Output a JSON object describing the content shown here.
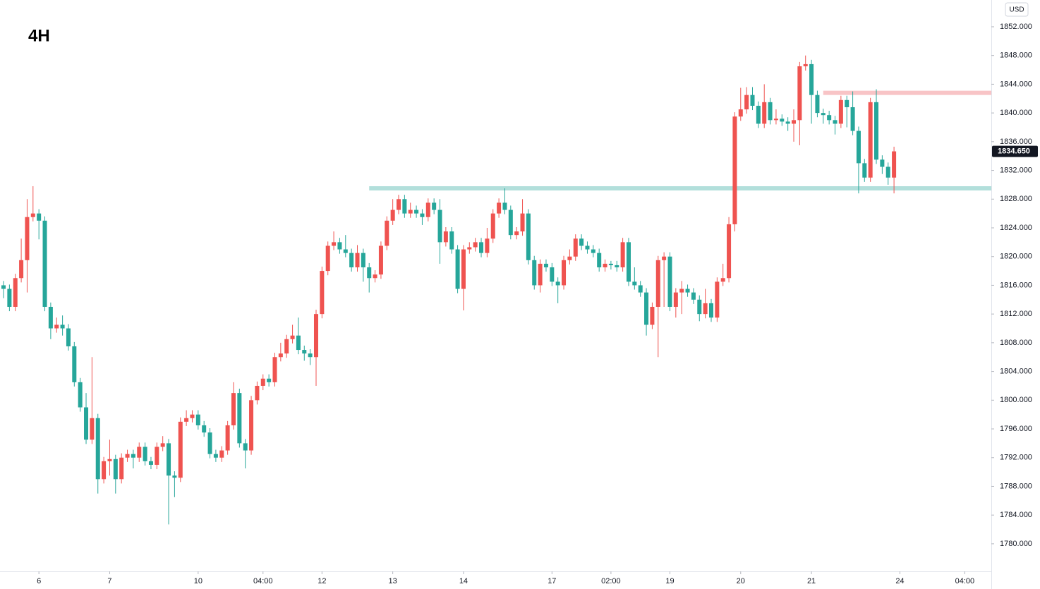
{
  "chart_data": {
    "type": "candlestick",
    "title": "4H",
    "currency": "USD",
    "up_color": "#ef5350",
    "down_color": "#26a69a",
    "open": [
      1816,
      1815.5,
      1813,
      1817,
      1819.5,
      1825.5,
      1826,
      1825,
      1813,
      1810,
      1810.5,
      1810,
      1807.5,
      1802.5,
      1799,
      1794.5,
      1797.5,
      1789,
      1791.5,
      1791.8,
      1789,
      1792,
      1792.5,
      1792,
      1793.5,
      1791.5,
      1791,
      1793.5,
      1794,
      1789.5,
      1789.2,
      1797,
      1797.5,
      1798,
      1796.5,
      1795.5,
      1792.5,
      1792,
      1793,
      1796.5,
      1801,
      1794,
      1793,
      1800,
      1802,
      1803,
      1802.5,
      1806,
      1806.5,
      1808.5,
      1809,
      1807,
      1806.5,
      1806,
      1812,
      1818,
      1821.5,
      1822,
      1821,
      1820.5,
      1818.5,
      1820.5,
      1818.5,
      1817,
      1817.5,
      1821.5,
      1825,
      1826.5,
      1828,
      1826,
      1826.5,
      1826,
      1825.5,
      1827.5,
      1826.5,
      1822,
      1823.5,
      1821,
      1815.5,
      1821,
      1821.3,
      1822,
      1820.5,
      1822.5,
      1826,
      1827.5,
      1826.5,
      1823,
      1823.5,
      1826,
      1819.5,
      1816,
      1819,
      1818.5,
      1816.5,
      1816,
      1819.5,
      1820,
      1822.5,
      1821.5,
      1821,
      1820.5,
      1818.5,
      1819,
      1818.8,
      1818.5,
      1822,
      1816.5,
      1816,
      1815,
      1810.5,
      1813,
      1819.5,
      1820,
      1813,
      1815,
      1815.5,
      1815,
      1814,
      1812,
      1813.5,
      1811.5,
      1816.5,
      1817,
      1824.5,
      1839.5,
      1840.5,
      1842.5,
      1841,
      1838.5,
      1841.5,
      1839,
      1839.2,
      1838.8,
      1838.5,
      1839,
      1846.5,
      1846.8,
      1842.5,
      1840,
      1839.7,
      1839,
      1838.5,
      1841.8,
      1840.8,
      1837.5,
      1833,
      1831,
      1841.5,
      1833.5,
      1832.5,
      1831
    ],
    "high": [
      1816.6,
      1816.1,
      1817.6,
      1822.5,
      1828,
      1829.8,
      1826.6,
      1825.6,
      1813.6,
      1811.5,
      1811.8,
      1810.6,
      1808.1,
      1803.1,
      1801,
      1806,
      1798.1,
      1792.1,
      1794.5,
      1792.4,
      1792.6,
      1793.1,
      1793.1,
      1794.1,
      1794.1,
      1792.1,
      1794.1,
      1795,
      1794.6,
      1790.1,
      1797.6,
      1798.6,
      1798.6,
      1798.6,
      1797.1,
      1796.1,
      1793.1,
      1793.6,
      1797.1,
      1802.5,
      1801.6,
      1794.6,
      1800.6,
      1802.6,
      1803.6,
      1803.6,
      1806.6,
      1808,
      1809.1,
      1810.5,
      1811.5,
      1807.6,
      1807.1,
      1812.6,
      1818.6,
      1822.1,
      1823.5,
      1822.6,
      1823,
      1821.1,
      1821.6,
      1821.1,
      1819.1,
      1818.1,
      1822.1,
      1825.6,
      1828,
      1828.6,
      1828.6,
      1827.5,
      1827.1,
      1826.6,
      1828.1,
      1828.1,
      1828,
      1824.1,
      1824.1,
      1821.6,
      1821.6,
      1822,
      1822.6,
      1822.6,
      1824,
      1826.6,
      1828.1,
      1829.5,
      1827.1,
      1824.1,
      1828,
      1826.6,
      1820.1,
      1819.6,
      1819.6,
      1819.1,
      1817.1,
      1820.1,
      1821,
      1823.1,
      1823.1,
      1822.1,
      1821.6,
      1821.1,
      1819.6,
      1819.4,
      1819.4,
      1822.6,
      1822.6,
      1818.5,
      1816.6,
      1815.6,
      1813.6,
      1820.1,
      1820.6,
      1820.6,
      1815.6,
      1816.6,
      1816.1,
      1815.6,
      1814.6,
      1815.5,
      1814.1,
      1817.1,
      1819,
      1825.5,
      1840.1,
      1843.5,
      1843.6,
      1843.6,
      1841.6,
      1844,
      1842.1,
      1840.5,
      1839.8,
      1839.4,
      1840.5,
      1847.1,
      1848,
      1847.4,
      1843.1,
      1840.6,
      1840.3,
      1839.6,
      1842.4,
      1842.4,
      1843,
      1838.1,
      1833.6,
      1842.1,
      1843.3,
      1834.1,
      1833.1,
      1835.3
    ],
    "low": [
      1814.2,
      1812.4,
      1812.4,
      1816.4,
      1815,
      1824.9,
      1822.4,
      1812.4,
      1808.5,
      1809.4,
      1809,
      1806.9,
      1801.9,
      1798.4,
      1793.9,
      1793.9,
      1787,
      1788.4,
      1789.5,
      1787,
      1788.4,
      1791.4,
      1790.5,
      1791.4,
      1790.9,
      1790.4,
      1790.4,
      1792.9,
      1782.7,
      1786.5,
      1788.6,
      1796.4,
      1796.9,
      1795.9,
      1794.9,
      1791.9,
      1791.4,
      1791.4,
      1792.4,
      1795.9,
      1793.4,
      1790.5,
      1792.4,
      1799.4,
      1801.4,
      1801.9,
      1801.9,
      1805.4,
      1805.9,
      1807.9,
      1806.4,
      1805.5,
      1804.9,
      1802,
      1811.4,
      1817.4,
      1820.9,
      1820.4,
      1819.9,
      1817.9,
      1817.9,
      1816.5,
      1815,
      1816.4,
      1816.9,
      1820.9,
      1824.4,
      1825.9,
      1825.4,
      1825.4,
      1825.4,
      1824.4,
      1824.9,
      1825.9,
      1819,
      1821.4,
      1820.4,
      1814.9,
      1812.5,
      1820.4,
      1820.7,
      1819.9,
      1819.9,
      1821.9,
      1825.4,
      1825.9,
      1822.4,
      1822.4,
      1822.9,
      1818.9,
      1815.4,
      1815,
      1817.9,
      1815.9,
      1813.5,
      1815.4,
      1818.9,
      1819.4,
      1820.9,
      1820.4,
      1819.9,
      1817.9,
      1817.9,
      1818.2,
      1817.9,
      1817.9,
      1815.9,
      1815.4,
      1814.4,
      1809,
      1809.9,
      1806,
      1813,
      1812.4,
      1811.5,
      1812,
      1814.4,
      1813.4,
      1811,
      1811.4,
      1810.9,
      1810.9,
      1815.9,
      1816.4,
      1823.5,
      1838.9,
      1839.9,
      1840.4,
      1837.9,
      1837.9,
      1838.4,
      1838.4,
      1838.2,
      1837.5,
      1836,
      1835.5,
      1845.9,
      1838.5,
      1839.4,
      1838.5,
      1838.4,
      1837,
      1837.9,
      1838,
      1836.9,
      1828.8,
      1830.4,
      1830.4,
      1832.9,
      1831.5,
      1830,
      1828.8
    ],
    "close": [
      1815.5,
      1813,
      1817,
      1819.5,
      1825.5,
      1826,
      1825,
      1813,
      1810,
      1810.5,
      1810,
      1807.5,
      1802.5,
      1799,
      1794.5,
      1797.5,
      1789,
      1791.5,
      1791.8,
      1789,
      1792,
      1792.5,
      1792,
      1793.5,
      1791.5,
      1791,
      1793.5,
      1794,
      1789.5,
      1789.2,
      1797,
      1797.5,
      1798,
      1796.5,
      1795.5,
      1792.5,
      1792,
      1793,
      1796.5,
      1801,
      1794,
      1793,
      1800,
      1802,
      1803,
      1802.5,
      1806,
      1806.5,
      1808.5,
      1809,
      1807,
      1806.5,
      1806,
      1812,
      1818,
      1821.5,
      1822,
      1821,
      1820.5,
      1818.5,
      1820.5,
      1818.5,
      1817,
      1817.5,
      1821.5,
      1825,
      1826.5,
      1828,
      1826,
      1826.5,
      1826,
      1825.5,
      1827.5,
      1826.5,
      1822,
      1823.5,
      1821,
      1815.5,
      1821,
      1821.3,
      1822,
      1820.5,
      1822.5,
      1826,
      1827.5,
      1826.5,
      1823,
      1823.5,
      1826,
      1819.5,
      1816,
      1819,
      1818.5,
      1816.5,
      1816,
      1819.5,
      1820,
      1822.5,
      1821.5,
      1821,
      1820.5,
      1818.5,
      1819,
      1818.8,
      1818.5,
      1822,
      1816.5,
      1816,
      1815,
      1810.5,
      1813,
      1819.5,
      1820,
      1813,
      1815,
      1815.5,
      1815,
      1814,
      1812,
      1813.5,
      1811.5,
      1816.5,
      1817,
      1824.5,
      1839.5,
      1840.5,
      1842.5,
      1841,
      1838.5,
      1841.5,
      1839,
      1839.2,
      1838.8,
      1838.5,
      1839,
      1846.5,
      1846.8,
      1842.5,
      1840,
      1839.7,
      1839,
      1838.5,
      1841.8,
      1840.8,
      1837.5,
      1833,
      1831,
      1841.5,
      1833.5,
      1832.5,
      1831,
      1834.65
    ],
    "last_label": "1834.650",
    "levels": [
      {
        "value": 1829.5,
        "start": 62,
        "color": "#b2dfdb"
      },
      {
        "value": 1842.8,
        "start": 139,
        "color": "#f8c4c6"
      }
    ],
    "ylim": [
      1776.16,
      1855.73
    ],
    "yticks": [
      {
        "value": 1780,
        "label": "1780.000"
      },
      {
        "value": 1784,
        "label": "1784.000"
      },
      {
        "value": 1788,
        "label": "1788.000"
      },
      {
        "value": 1792,
        "label": "1792.000"
      },
      {
        "value": 1796,
        "label": "1796.000"
      },
      {
        "value": 1800,
        "label": "1800.000"
      },
      {
        "value": 1804,
        "label": "1804.000"
      },
      {
        "value": 1808,
        "label": "1808.000"
      },
      {
        "value": 1812,
        "label": "1812.000"
      },
      {
        "value": 1816,
        "label": "1816.000"
      },
      {
        "value": 1820,
        "label": "1820.000"
      },
      {
        "value": 1824,
        "label": "1824.000"
      },
      {
        "value": 1828,
        "label": "1828.000"
      },
      {
        "value": 1832,
        "label": "1832.000"
      },
      {
        "value": 1836,
        "label": "1836.000"
      },
      {
        "value": 1840,
        "label": "1840.000"
      },
      {
        "value": 1844,
        "label": "1844.000"
      },
      {
        "value": 1848,
        "label": "1848.000"
      },
      {
        "value": 1852,
        "label": "1852.000"
      }
    ],
    "xlim": [
      -0.6,
      167.5
    ],
    "xticks": [
      {
        "value": 6,
        "label": "6"
      },
      {
        "value": 18,
        "label": "7"
      },
      {
        "value": 33,
        "label": "10"
      },
      {
        "value": 44,
        "label": "04:00"
      },
      {
        "value": 54,
        "label": "12"
      },
      {
        "value": 66,
        "label": "13"
      },
      {
        "value": 78,
        "label": "14"
      },
      {
        "value": 93,
        "label": "17"
      },
      {
        "value": 103,
        "label": "02:00"
      },
      {
        "value": 113,
        "label": "19"
      },
      {
        "value": 125,
        "label": "20"
      },
      {
        "value": 137,
        "label": "21"
      },
      {
        "value": 152,
        "label": "24"
      },
      {
        "value": 163,
        "label": "04:00"
      }
    ]
  }
}
